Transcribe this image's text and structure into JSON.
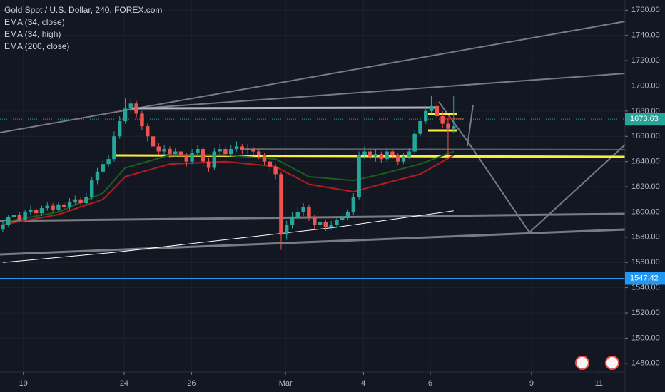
{
  "chart_data": {
    "type": "candlestick",
    "title": "Gold Spot / U.S. Dollar, 240, FOREX.com",
    "open": [
      1586,
      1590,
      1596,
      1598,
      1594,
      1600,
      1602,
      1599,
      1603,
      1605,
      1602,
      1606,
      1604,
      1608,
      1610,
      1607,
      1612,
      1625,
      1632,
      1638,
      1642,
      1660,
      1672,
      1682,
      1686,
      1678,
      1668,
      1660,
      1652,
      1648,
      1650,
      1646,
      1648,
      1645,
      1640,
      1647,
      1650,
      1640,
      1635,
      1648,
      1650,
      1646,
      1650,
      1652,
      1649,
      1650,
      1648,
      1645,
      1640,
      1636,
      1630,
      1582,
      1590,
      1596,
      1600,
      1604,
      1596,
      1590,
      1592,
      1588,
      1590,
      1594,
      1596,
      1600,
      1612,
      1645,
      1648,
      1644,
      1646,
      1642,
      1648,
      1645,
      1640,
      1644,
      1648,
      1662,
      1672,
      1680,
      1684,
      1676,
      1670,
      1666
    ],
    "high": [
      1592,
      1598,
      1601,
      1600,
      1602,
      1605,
      1604,
      1605,
      1608,
      1607,
      1608,
      1608,
      1611,
      1613,
      1612,
      1615,
      1628,
      1635,
      1641,
      1645,
      1664,
      1676,
      1690,
      1690,
      1688,
      1680,
      1670,
      1662,
      1655,
      1653,
      1652,
      1651,
      1650,
      1647,
      1650,
      1653,
      1652,
      1643,
      1651,
      1654,
      1652,
      1653,
      1656,
      1654,
      1654,
      1652,
      1650,
      1647,
      1642,
      1638,
      1632,
      1593,
      1600,
      1604,
      1607,
      1606,
      1598,
      1595,
      1594,
      1593,
      1596,
      1599,
      1602,
      1615,
      1648,
      1652,
      1650,
      1650,
      1648,
      1651,
      1650,
      1647,
      1647,
      1651,
      1665,
      1675,
      1684,
      1692,
      1688,
      1680,
      1674,
      1692
    ],
    "low": [
      1584,
      1588,
      1594,
      1592,
      1592,
      1598,
      1597,
      1597,
      1601,
      1600,
      1600,
      1602,
      1602,
      1606,
      1605,
      1605,
      1610,
      1622,
      1630,
      1636,
      1640,
      1658,
      1670,
      1678,
      1675,
      1665,
      1656,
      1648,
      1645,
      1645,
      1643,
      1644,
      1642,
      1636,
      1638,
      1645,
      1636,
      1632,
      1633,
      1645,
      1643,
      1644,
      1648,
      1646,
      1646,
      1645,
      1642,
      1637,
      1632,
      1626,
      1570,
      1578,
      1587,
      1594,
      1597,
      1593,
      1586,
      1587,
      1585,
      1586,
      1588,
      1592,
      1594,
      1598,
      1610,
      1642,
      1641,
      1640,
      1639,
      1640,
      1642,
      1637,
      1638,
      1642,
      1646,
      1660,
      1670,
      1678,
      1674,
      1667,
      1645,
      1663
    ],
    "close": [
      1590,
      1596,
      1598,
      1594,
      1600,
      1602,
      1599,
      1603,
      1605,
      1602,
      1606,
      1604,
      1608,
      1610,
      1607,
      1612,
      1625,
      1632,
      1638,
      1642,
      1660,
      1672,
      1682,
      1686,
      1678,
      1668,
      1660,
      1652,
      1648,
      1650,
      1646,
      1648,
      1645,
      1640,
      1647,
      1650,
      1640,
      1635,
      1648,
      1650,
      1646,
      1650,
      1652,
      1649,
      1650,
      1648,
      1645,
      1640,
      1636,
      1630,
      1582,
      1590,
      1596,
      1600,
      1604,
      1596,
      1590,
      1592,
      1588,
      1590,
      1594,
      1596,
      1600,
      1612,
      1645,
      1648,
      1644,
      1646,
      1642,
      1648,
      1645,
      1640,
      1644,
      1648,
      1662,
      1672,
      1680,
      1684,
      1676,
      1670,
      1666,
      1668
    ],
    "up_color": "#26a69a",
    "down_color": "#ef5350",
    "indicators": [
      {
        "name": "EMA (34, close)",
        "color": "#1b5e20",
        "x": [
          0,
          10,
          18,
          22,
          30,
          40,
          49,
          55,
          63,
          68,
          75,
          81
        ],
        "values": [
          1592,
          1600,
          1615,
          1635,
          1645,
          1645,
          1642,
          1628,
          1625,
          1630,
          1638,
          1648
        ]
      },
      {
        "name": "EMA (34, high)",
        "color": "#b71c1c",
        "x": [
          0,
          10,
          18,
          22,
          30,
          40,
          49,
          55,
          63,
          68,
          75,
          81
        ],
        "values": [
          1590,
          1598,
          1610,
          1628,
          1638,
          1640,
          1636,
          1622,
          1616,
          1622,
          1630,
          1645
        ]
      },
      {
        "name": "EMA (200, close)",
        "color": "#ffffff",
        "x": [
          0,
          20,
          40,
          60,
          81
        ],
        "values": [
          1560,
          1568,
          1578,
          1588,
          1601
        ]
      }
    ],
    "price_lines": [
      {
        "value": 1673.63,
        "color": "#26a69a"
      },
      {
        "value": 1547.42,
        "color": "#2196f3"
      }
    ],
    "xlim": [
      -0.5,
      111.8
    ],
    "xticks": [
      {
        "value": 3.7,
        "label": "19"
      },
      {
        "value": 21.8,
        "label": "24"
      },
      {
        "value": 33.9,
        "label": "26"
      },
      {
        "value": 50.8,
        "label": "Mar"
      },
      {
        "value": 64.8,
        "label": "4"
      },
      {
        "value": 76.8,
        "label": "6"
      },
      {
        "value": 95,
        "label": "9"
      },
      {
        "value": 107.1,
        "label": "11"
      }
    ],
    "ylim": [
      1473.1,
      1768.1
    ],
    "yticks": [
      {
        "value": 1480,
        "label": "1480.00"
      },
      {
        "value": 1500,
        "label": "1500.00"
      },
      {
        "value": 1520,
        "label": "1520.00"
      },
      {
        "value": 1540,
        "label": "1540.00"
      },
      {
        "value": 1560,
        "label": "1560.00"
      },
      {
        "value": 1580,
        "label": "1580.00"
      },
      {
        "value": 1600,
        "label": "1600.00"
      },
      {
        "value": 1620,
        "label": "1620.00"
      },
      {
        "value": 1640,
        "label": "1640.00"
      },
      {
        "value": 1660,
        "label": "1660.00"
      },
      {
        "value": 1680,
        "label": "1680.00"
      },
      {
        "value": 1700,
        "label": "1700.00"
      },
      {
        "value": 1720,
        "label": "1720.00"
      },
      {
        "value": 1740,
        "label": "1740.00"
      },
      {
        "value": 1760,
        "label": "1760.00"
      }
    ],
    "grid": true
  }
}
